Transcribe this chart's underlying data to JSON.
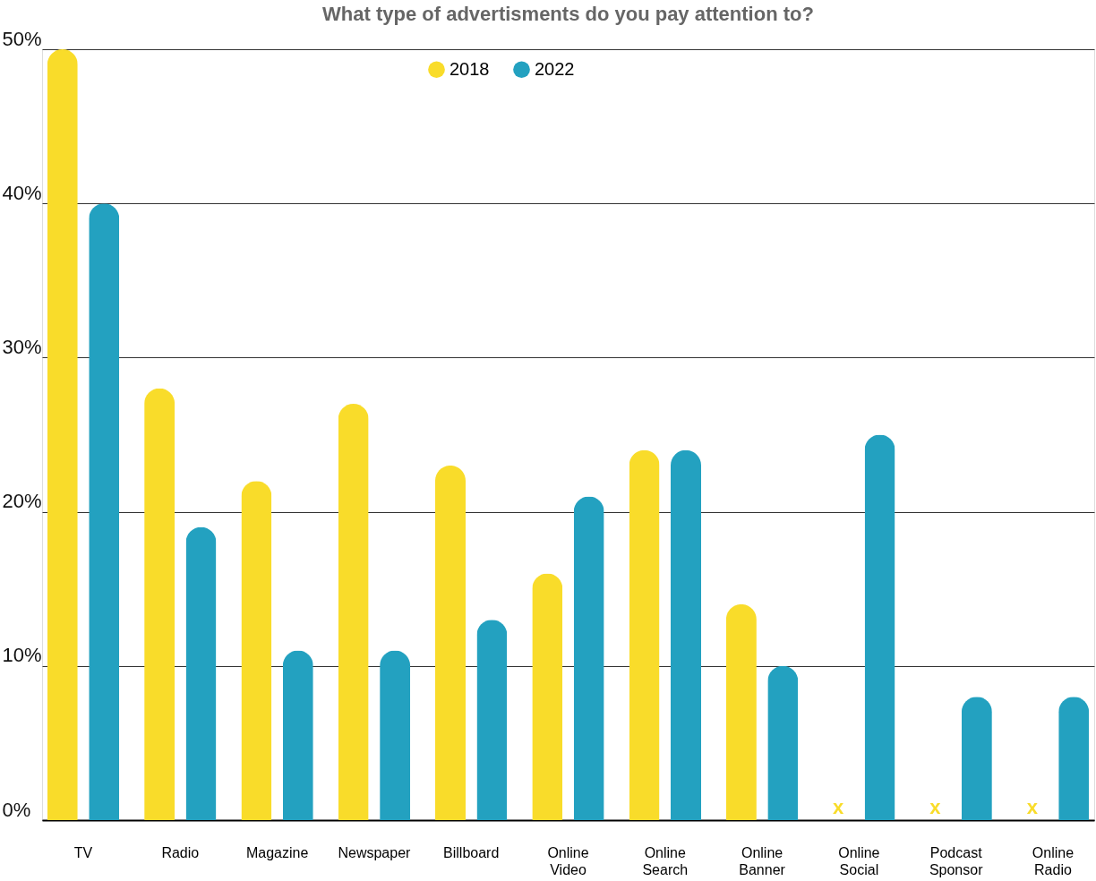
{
  "chart_data": {
    "type": "bar",
    "title": "What type of advertisments do you pay attention to?",
    "categories": [
      "TV",
      "Radio",
      "Magazine",
      "Newspaper",
      "Billboard",
      "Online Video",
      "Online Search",
      "Online Banner",
      "Online Social",
      "Podcast Sponsor",
      "Online Radio"
    ],
    "series": [
      {
        "name": "2018",
        "color": "#f9dc2a",
        "values": [
          50,
          28,
          22,
          27,
          23,
          16,
          24,
          14,
          null,
          null,
          null
        ]
      },
      {
        "name": "2022",
        "color": "#23a1c0",
        "values": [
          40,
          19,
          11,
          11,
          13,
          21,
          24,
          10,
          25,
          8,
          8
        ]
      }
    ],
    "ylim": [
      0,
      50
    ],
    "yticks": [
      {
        "value": 0,
        "label": "0%"
      },
      {
        "value": 10,
        "label": "10%"
      },
      {
        "value": 20,
        "label": "20%"
      },
      {
        "value": 30,
        "label": "30%"
      },
      {
        "value": 40,
        "label": "40%"
      },
      {
        "value": 50,
        "label": "50%"
      }
    ],
    "grid": "y",
    "legend": "top",
    "annotations": [
      "x",
      "x",
      "x"
    ]
  }
}
